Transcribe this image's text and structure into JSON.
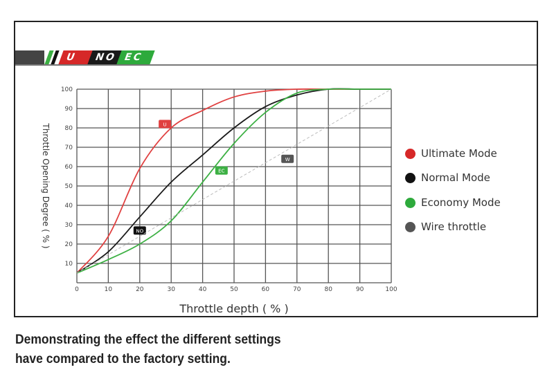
{
  "header_tags": [
    {
      "text": "U",
      "color": "#d62828"
    },
    {
      "text": "NO",
      "color": "#1a1a1a"
    },
    {
      "text": "EC",
      "color": "#2eaa3c"
    }
  ],
  "caption_lines": [
    "Demonstrating the effect the different settings",
    "have compared to the factory setting."
  ],
  "chart_data": {
    "type": "line",
    "xlabel": "Throttle depth ( % )",
    "ylabel": "Throttle Opening Degree ( % )",
    "xlim": [
      0,
      100
    ],
    "ylim": [
      0,
      100
    ],
    "xticks": [
      0,
      10,
      20,
      30,
      40,
      50,
      60,
      70,
      80,
      90,
      100
    ],
    "yticks": [
      10,
      20,
      30,
      40,
      50,
      60,
      70,
      80,
      90,
      100
    ],
    "grid": true,
    "legend_position": "right",
    "x": [
      0,
      10,
      20,
      30,
      40,
      50,
      60,
      70,
      80,
      90,
      100
    ],
    "series": [
      {
        "name": "Ultimate Mode",
        "tag": "U",
        "color": "#e04040",
        "values": [
          5,
          24,
          59,
          80,
          89,
          96,
          99,
          100,
          100,
          100,
          100
        ],
        "tag_at": [
          28,
          82
        ]
      },
      {
        "name": "Normal Mode",
        "tag": "NO",
        "color": "#1a1a1a",
        "values": [
          5,
          16,
          34,
          52,
          66,
          80,
          91,
          97,
          100,
          100,
          100
        ],
        "tag_at": [
          20,
          27
        ]
      },
      {
        "name": "Economy Mode",
        "tag": "EC",
        "color": "#3cb043",
        "values": [
          5,
          12,
          20,
          32,
          52,
          72,
          88,
          98,
          100,
          100,
          100
        ],
        "tag_at": [
          46,
          58
        ]
      },
      {
        "name": "Wire throttle",
        "tag": "W",
        "color": "#666666",
        "values": [
          5,
          14.5,
          24,
          33.5,
          43,
          52.5,
          62,
          71.5,
          81,
          90.5,
          100
        ],
        "tag_at": [
          67,
          64
        ]
      }
    ]
  }
}
